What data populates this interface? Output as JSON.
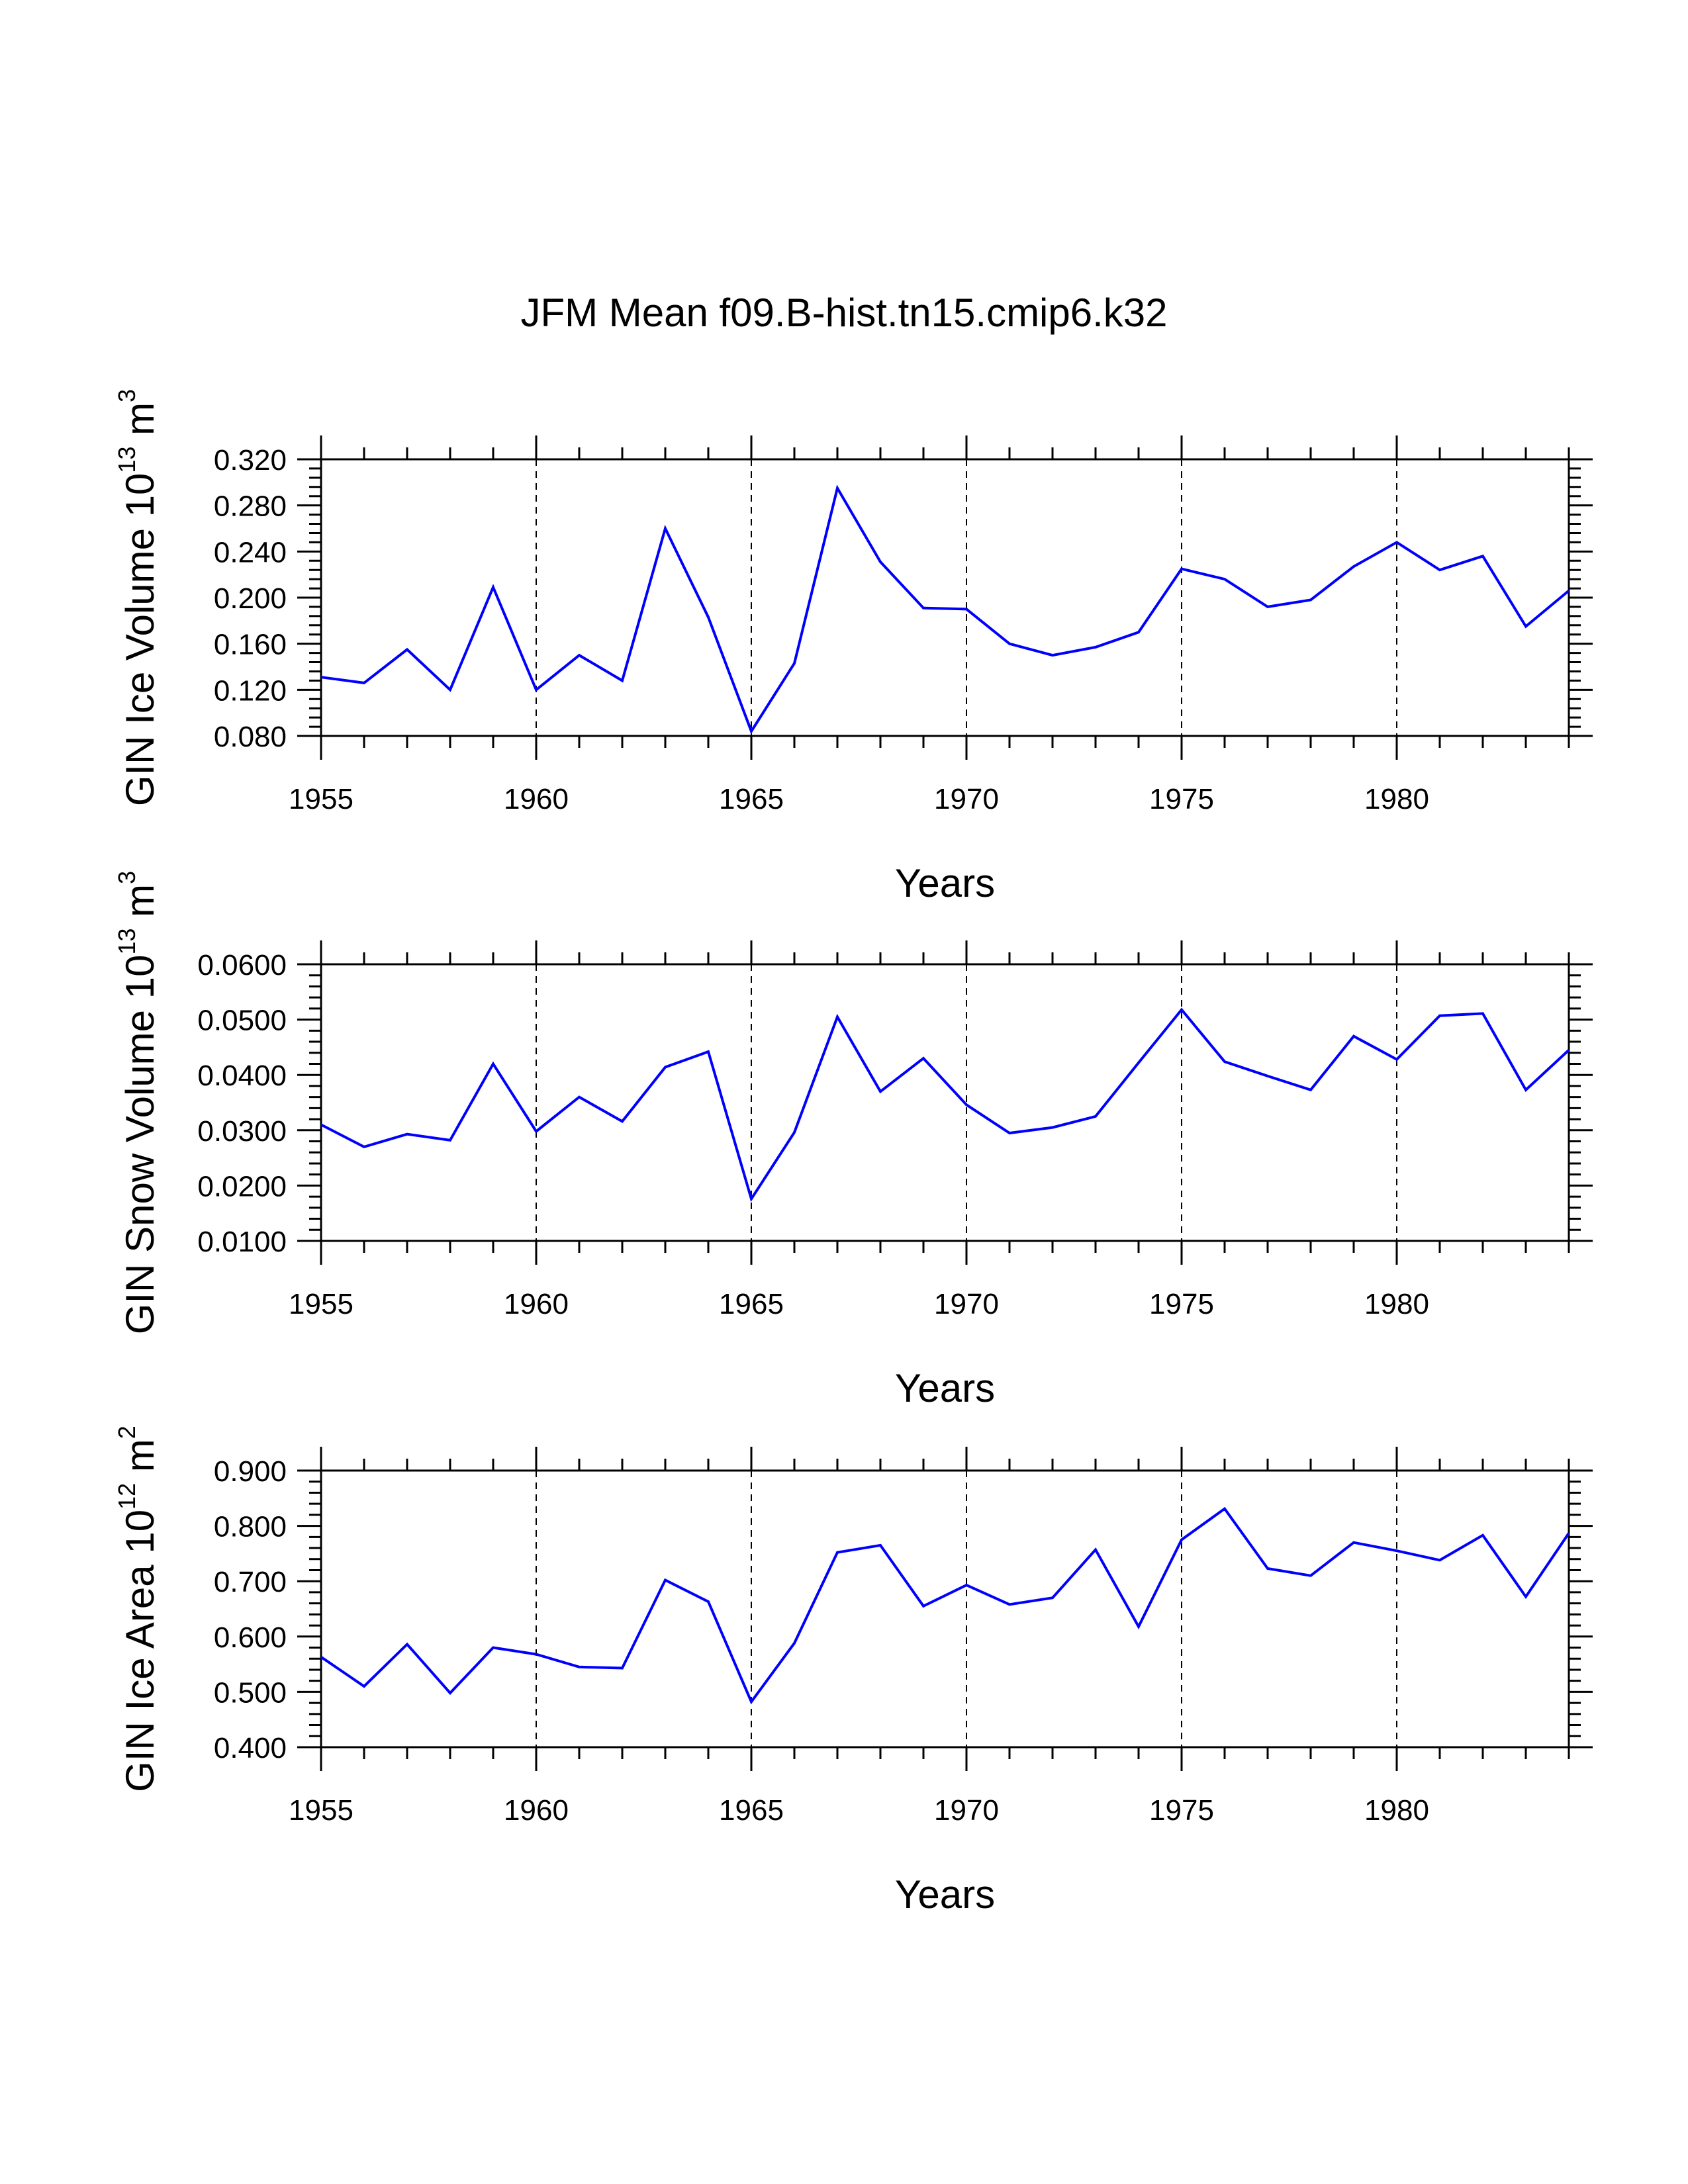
{
  "title": "JFM Mean f09.B-hist.tn15.cmip6.k32",
  "chart_data": [
    {
      "type": "line",
      "id": "ice-volume",
      "ylabel": "GIN Ice Volume 10",
      "ylabel_exp": "13",
      "ylabel_unit": " m",
      "ylabel_unit_exp": "3",
      "xlabel": "Years",
      "xlim": [
        1955,
        1984
      ],
      "ylim": [
        0.08,
        0.32
      ],
      "xticks": [
        1955,
        1960,
        1965,
        1970,
        1975,
        1980
      ],
      "yticks": [
        0.08,
        0.12,
        0.16,
        0.2,
        0.24,
        0.28,
        0.32
      ],
      "ytick_labels": [
        "0.080",
        "0.120",
        "0.160",
        "0.200",
        "0.240",
        "0.280",
        "0.320"
      ],
      "line_color": "#0000ff",
      "x": [
        1955,
        1956,
        1957,
        1958,
        1959,
        1960,
        1961,
        1962,
        1963,
        1964,
        1965,
        1966,
        1967,
        1968,
        1969,
        1970,
        1971,
        1972,
        1973,
        1974,
        1975,
        1976,
        1977,
        1978,
        1979,
        1980,
        1981,
        1982,
        1983,
        1984
      ],
      "values": [
        0.131,
        0.126,
        0.155,
        0.12,
        0.209,
        0.12,
        0.15,
        0.128,
        0.26,
        0.183,
        0.084,
        0.143,
        0.295,
        0.231,
        0.191,
        0.19,
        0.16,
        0.15,
        0.157,
        0.17,
        0.225,
        0.216,
        0.192,
        0.198,
        0.227,
        0.248,
        0.224,
        0.236,
        0.175,
        0.206
      ]
    },
    {
      "type": "line",
      "id": "snow-volume",
      "ylabel": "GIN Snow Volume 10",
      "ylabel_exp": "13",
      "ylabel_unit": " m",
      "ylabel_unit_exp": "3",
      "xlabel": "Years",
      "xlim": [
        1955,
        1984
      ],
      "ylim": [
        0.01,
        0.06
      ],
      "xticks": [
        1955,
        1960,
        1965,
        1970,
        1975,
        1980
      ],
      "yticks": [
        0.01,
        0.02,
        0.03,
        0.04,
        0.05,
        0.06
      ],
      "ytick_labels": [
        "0.0100",
        "0.0200",
        "0.0300",
        "0.0400",
        "0.0500",
        "0.0600"
      ],
      "line_color": "#0000ff",
      "x": [
        1955,
        1956,
        1957,
        1958,
        1959,
        1960,
        1961,
        1962,
        1963,
        1964,
        1965,
        1966,
        1967,
        1968,
        1969,
        1970,
        1971,
        1972,
        1973,
        1974,
        1975,
        1976,
        1977,
        1978,
        1979,
        1980,
        1981,
        1982,
        1983,
        1984
      ],
      "values": [
        0.031,
        0.027,
        0.0293,
        0.0282,
        0.042,
        0.0298,
        0.036,
        0.0316,
        0.0414,
        0.0442,
        0.0176,
        0.0296,
        0.0505,
        0.037,
        0.043,
        0.0346,
        0.0295,
        0.0305,
        0.0325,
        0.0422,
        0.0518,
        0.0424,
        0.0398,
        0.0373,
        0.047,
        0.0428,
        0.0507,
        0.0511,
        0.0373,
        0.0445
      ]
    },
    {
      "type": "line",
      "id": "ice-area",
      "ylabel": "GIN Ice Area 10",
      "ylabel_exp": "12",
      "ylabel_unit": " m",
      "ylabel_unit_exp": "2",
      "xlabel": "Years",
      "xlim": [
        1955,
        1984
      ],
      "ylim": [
        0.4,
        0.9
      ],
      "xticks": [
        1955,
        1960,
        1965,
        1970,
        1975,
        1980
      ],
      "yticks": [
        0.4,
        0.5,
        0.6,
        0.7,
        0.8,
        0.9
      ],
      "ytick_labels": [
        "0.400",
        "0.500",
        "0.600",
        "0.700",
        "0.800",
        "0.900"
      ],
      "line_color": "#0000ff",
      "x": [
        1955,
        1956,
        1957,
        1958,
        1959,
        1960,
        1961,
        1962,
        1963,
        1964,
        1965,
        1966,
        1967,
        1968,
        1969,
        1970,
        1971,
        1972,
        1973,
        1974,
        1975,
        1976,
        1977,
        1978,
        1979,
        1980,
        1981,
        1982,
        1983,
        1984
      ],
      "values": [
        0.563,
        0.51,
        0.586,
        0.498,
        0.58,
        0.568,
        0.545,
        0.543,
        0.702,
        0.663,
        0.482,
        0.588,
        0.752,
        0.765,
        0.655,
        0.693,
        0.658,
        0.67,
        0.757,
        0.618,
        0.775,
        0.831,
        0.723,
        0.71,
        0.77,
        0.755,
        0.738,
        0.783,
        0.672,
        0.787
      ]
    }
  ]
}
